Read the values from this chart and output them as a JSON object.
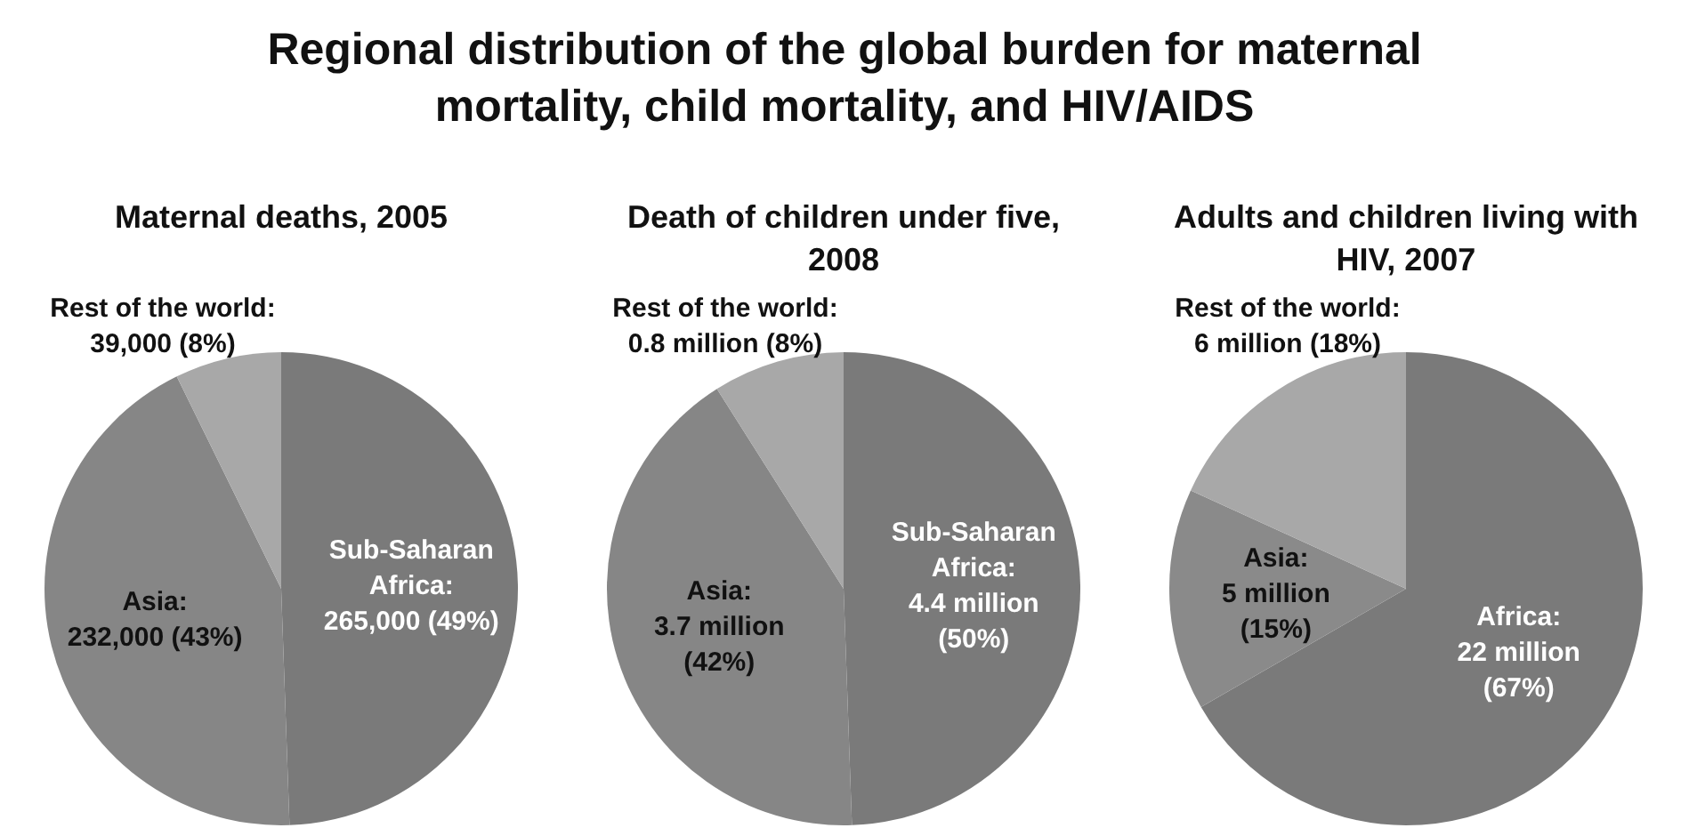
{
  "chart_data": [
    {
      "type": "pie",
      "title": "Regional distribution of the global burden for maternal mortality, child mortality, and HIV/AIDS",
      "subtitle": "Maternal deaths, 2005",
      "categories": [
        "Sub-Saharan Africa",
        "Asia",
        "Rest of the world"
      ],
      "values": [
        265000,
        232000,
        39000
      ],
      "colors": [
        "#7a7a7a",
        "#868686",
        "#a8a8a8"
      ],
      "value_labels": [
        ": 265,000 (49%)",
        ": 232,000 (43%)",
        ": 39,000 (8%)"
      ]
    },
    {
      "type": "pie",
      "subtitle": "Death of children under five, 2008",
      "categories": [
        "Sub-Saharan Africa",
        "Asia",
        "Rest of the world"
      ],
      "values": [
        4400000,
        3700000,
        800000
      ],
      "colors": [
        "#7a7a7a",
        "#868686",
        "#a8a8a8"
      ],
      "value_labels": [
        ": 4.4 million (50%)",
        ": 3.7 million (42%)",
        ": 0.8 million (8%)"
      ]
    },
    {
      "type": "pie",
      "subtitle": "Adults and children living with HIV, 2007",
      "categories": [
        "Africa",
        "Asia",
        "Rest of the world"
      ],
      "values": [
        22000000,
        5000000,
        6000000
      ],
      "colors": [
        "#7a7a7a",
        "#8a8a8a",
        "#a8a8a8"
      ],
      "value_labels": [
        ": 22 million (67%)",
        ": 5 million (15%)",
        ": 6 million (18%)"
      ]
    }
  ]
}
